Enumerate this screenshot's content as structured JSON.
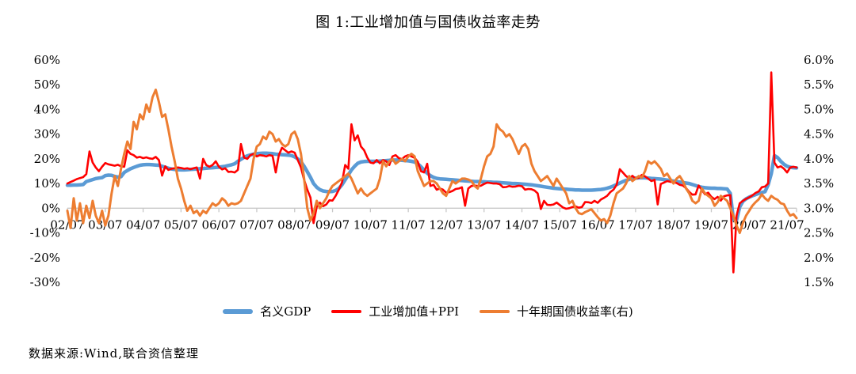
{
  "title": "图 1:工业增加值与国债收益率走势",
  "source_note": "数据来源:Wind,联合资信整理",
  "colors": {
    "gdp_blue": "#5B9BD5",
    "iva_ppi_red": "#FF0000",
    "yield_orange": "#ED7D31",
    "axis_gray": "#C8C8C8",
    "text": "#000000"
  },
  "chart_data": {
    "type": "line",
    "x_start": "2002-07",
    "x_step": "1 month",
    "x_tick_labels": [
      "02/07",
      "03/07",
      "04/07",
      "05/07",
      "06/07",
      "07/07",
      "08/07",
      "09/07",
      "10/07",
      "11/07",
      "12/07",
      "13/07",
      "14/07",
      "15/07",
      "16/07",
      "17/07",
      "18/07",
      "19/07",
      "20/07",
      "21/07"
    ],
    "left_axis": {
      "unit": "%",
      "max": 60,
      "min": -30,
      "tick_labels": [
        "60%",
        "50%",
        "40%",
        "30%",
        "20%",
        "10%",
        "0%",
        "-10%",
        "-20%",
        "-30%"
      ]
    },
    "right_axis": {
      "unit": "%",
      "max": 6.0,
      "min": 1.5,
      "tick_labels": [
        "6.0%",
        "5.5%",
        "5.0%",
        "4.5%",
        "4.0%",
        "3.5%",
        "3.0%",
        "2.5%",
        "2.0%",
        "1.5%"
      ]
    },
    "legend_position": "bottom",
    "grid": "zero-axis-only",
    "series": [
      {
        "name": "名义GDP",
        "axis": "left",
        "color": "#5B9BD5",
        "width": 4.5,
        "values": [
          9.3,
          9.3,
          9.4,
          9.4,
          9.5,
          9.6,
          10.8,
          11.2,
          11.6,
          12.0,
          12.2,
          12.4,
          13.2,
          13.4,
          13.3,
          12.9,
          12.6,
          12.8,
          14.5,
          15.3,
          16.0,
          16.5,
          17.0,
          17.4,
          17.6,
          17.7,
          17.7,
          17.6,
          17.5,
          17.4,
          17.0,
          16.6,
          16.2,
          15.9,
          15.7,
          15.6,
          15.5,
          15.5,
          15.6,
          15.7,
          15.8,
          15.9,
          16.0,
          16.1,
          16.2,
          16.3,
          16.4,
          16.5,
          16.6,
          16.8,
          17.0,
          17.3,
          17.6,
          18.0,
          19.0,
          19.8,
          20.6,
          21.2,
          21.6,
          21.9,
          22.1,
          22.2,
          22.3,
          22.3,
          22.2,
          22.1,
          21.9,
          21.8,
          21.7,
          21.6,
          21.5,
          21.3,
          20.8,
          20.0,
          18.8,
          17.0,
          14.8,
          12.5,
          10.0,
          8.5,
          7.5,
          7.0,
          6.8,
          6.7,
          6.8,
          7.2,
          8.0,
          9.5,
          11.5,
          13.5,
          15.5,
          17.0,
          18.2,
          18.7,
          18.9,
          19.0,
          19.0,
          19.0,
          19.0,
          19.1,
          19.2,
          19.3,
          19.4,
          19.5,
          19.5,
          19.5,
          19.4,
          19.3,
          19.2,
          19.0,
          18.7,
          18.0,
          16.8,
          15.5,
          14.2,
          13.2,
          12.5,
          12.1,
          11.9,
          11.8,
          11.7,
          11.6,
          11.5,
          11.4,
          11.3,
          11.2,
          11.1,
          11.0,
          10.9,
          10.8,
          10.8,
          10.7,
          10.7,
          10.6,
          10.6,
          10.5,
          10.5,
          10.4,
          10.3,
          10.2,
          10.1,
          10.0,
          10.0,
          9.9,
          9.8,
          9.7,
          9.6,
          9.5,
          9.3,
          9.1,
          8.9,
          8.7,
          8.5,
          8.3,
          8.1,
          8.0,
          7.9,
          7.8,
          7.7,
          7.6,
          7.5,
          7.4,
          7.4,
          7.3,
          7.3,
          7.3,
          7.3,
          7.4,
          7.5,
          7.6,
          7.8,
          8.1,
          8.5,
          9.0,
          9.6,
          10.2,
          10.8,
          11.3,
          11.7,
          12.0,
          12.2,
          12.3,
          12.3,
          12.3,
          12.2,
          12.1,
          12.0,
          11.9,
          11.8,
          11.6,
          11.4,
          11.2,
          11.0,
          10.8,
          10.6,
          10.4,
          10.2,
          10.0,
          9.6,
          9.2,
          8.8,
          8.5,
          8.3,
          8.2,
          8.1,
          8.1,
          8.0,
          8.0,
          7.9,
          7.8,
          6.0,
          -4.5,
          -4.8,
          0.5,
          2.8,
          3.8,
          4.5,
          5.0,
          5.5,
          6.0,
          6.4,
          6.7,
          9.5,
          14.0,
          21.3,
          20.5,
          19.0,
          17.8,
          17.0,
          16.6,
          16.4,
          16.3
        ]
      },
      {
        "name": "工业增加值+PPI",
        "axis": "left",
        "color": "#FF0000",
        "width": 2.6,
        "values": [
          10.0,
          10.6,
          11.2,
          11.8,
          12.2,
          12.6,
          13.8,
          23.0,
          18.5,
          16.5,
          15.0,
          16.8,
          18.3,
          17.8,
          17.5,
          17.2,
          17.6,
          17.0,
          16.8,
          23.5,
          22.0,
          21.5,
          20.5,
          20.8,
          20.3,
          20.6,
          20.2,
          20.0,
          20.8,
          19.5,
          13.2,
          17.0,
          15.5,
          16.0,
          16.2,
          16.5,
          16.3,
          16.0,
          16.2,
          15.8,
          16.2,
          16.5,
          12.0,
          20.0,
          17.5,
          16.8,
          17.5,
          19.0,
          16.8,
          15.7,
          16.2,
          14.7,
          14.8,
          14.5,
          15.5,
          26.0,
          20.5,
          20.0,
          21.5,
          22.0,
          21.0,
          21.5,
          21.3,
          21.0,
          21.5,
          21.2,
          14.5,
          21.5,
          24.5,
          23.5,
          22.5,
          23.0,
          22.5,
          19.5,
          16.5,
          11.5,
          7.5,
          4.3,
          -6.0,
          0.5,
          2.3,
          0.8,
          1.5,
          3.2,
          3.1,
          5.0,
          7.5,
          10.5,
          17.5,
          16.0,
          34.0,
          27.5,
          29.5,
          25.0,
          23.5,
          20.5,
          18.5,
          18.2,
          19.5,
          18.2,
          19.5,
          19.0,
          17.5,
          21.0,
          21.5,
          20.3,
          19.9,
          21.0,
          21.5,
          21.0,
          20.4,
          18.8,
          15.0,
          14.5,
          18.0,
          9.0,
          9.5,
          7.5,
          8.0,
          7.5,
          6.3,
          6.5,
          7.0,
          7.8,
          8.0,
          8.5,
          1.0,
          8.0,
          9.0,
          9.2,
          9.0,
          9.1,
          9.8,
          10.4,
          10.2,
          10.0,
          10.0,
          9.7,
          8.5,
          8.6,
          9.0,
          8.7,
          8.8,
          9.1,
          8.9,
          7.5,
          7.8,
          7.7,
          7.2,
          6.0,
          -0.3,
          3.0,
          1.4,
          1.3,
          1.5,
          2.3,
          1.3,
          0.3,
          -0.2,
          0.0,
          0.5,
          0.7,
          0.2,
          0.5,
          2.5,
          2.4,
          2.1,
          3.0,
          2.2,
          3.5,
          4.2,
          5.0,
          6.5,
          7.5,
          9.5,
          15.8,
          14.4,
          13.0,
          12.1,
          13.1,
          12.0,
          12.3,
          13.5,
          12.9,
          12.0,
          11.0,
          11.5,
          1.5,
          9.8,
          10.4,
          11.0,
          10.7,
          10.6,
          10.2,
          9.5,
          9.2,
          8.1,
          6.6,
          5.5,
          5.6,
          9.2,
          7.4,
          5.6,
          6.3,
          4.6,
          3.7,
          4.6,
          3.1,
          4.8,
          5.2,
          5.3,
          -26.0,
          -3.0,
          2.0,
          3.0,
          3.8,
          4.4,
          5.2,
          6.2,
          6.8,
          8.5,
          8.8,
          10.0,
          55.0,
          18.5,
          16.5,
          17.0,
          16.0,
          14.5,
          16.5,
          16.8,
          16.5
        ]
      },
      {
        "name": "十年期国债收益率(右)",
        "axis": "right",
        "color": "#ED7D31",
        "width": 3,
        "values": [
          2.95,
          2.6,
          3.2,
          2.75,
          3.1,
          2.7,
          3.05,
          2.8,
          3.15,
          2.85,
          2.7,
          2.95,
          2.65,
          2.85,
          3.3,
          3.65,
          3.45,
          3.8,
          4.1,
          4.35,
          4.2,
          4.75,
          4.6,
          4.9,
          4.8,
          5.1,
          4.95,
          5.25,
          5.4,
          5.15,
          4.85,
          4.9,
          4.6,
          4.25,
          3.95,
          3.6,
          3.4,
          3.15,
          2.95,
          3.05,
          2.9,
          2.95,
          2.85,
          2.95,
          2.9,
          3.0,
          3.1,
          3.05,
          3.1,
          3.2,
          3.15,
          3.05,
          3.1,
          3.08,
          3.1,
          3.15,
          3.3,
          3.45,
          3.6,
          4.0,
          4.25,
          4.3,
          4.45,
          4.4,
          4.55,
          4.5,
          4.35,
          4.4,
          4.3,
          4.25,
          4.3,
          4.5,
          4.55,
          4.4,
          4.1,
          3.6,
          3.0,
          2.75,
          2.9,
          3.15,
          3.0,
          3.1,
          3.2,
          3.35,
          3.45,
          3.5,
          3.55,
          3.6,
          3.65,
          3.7,
          3.6,
          3.45,
          3.3,
          3.4,
          3.3,
          3.25,
          3.3,
          3.35,
          3.4,
          3.6,
          3.95,
          3.85,
          3.95,
          4.0,
          3.9,
          3.95,
          4.0,
          3.95,
          4.05,
          4.1,
          4.05,
          3.75,
          3.6,
          3.45,
          3.5,
          3.55,
          3.55,
          3.5,
          3.4,
          3.3,
          3.25,
          3.4,
          3.55,
          3.5,
          3.55,
          3.6,
          3.6,
          3.58,
          3.55,
          3.45,
          3.4,
          3.6,
          3.85,
          4.05,
          4.1,
          4.25,
          4.7,
          4.6,
          4.55,
          4.45,
          4.5,
          4.4,
          4.25,
          4.1,
          4.25,
          4.3,
          4.2,
          3.9,
          3.75,
          3.65,
          3.55,
          3.6,
          3.65,
          3.55,
          3.45,
          3.6,
          3.5,
          3.4,
          3.3,
          3.1,
          3.15,
          3.0,
          2.9,
          2.88,
          2.92,
          2.95,
          2.98,
          2.9,
          2.82,
          2.75,
          2.78,
          2.7,
          2.85,
          3.1,
          3.3,
          3.35,
          3.4,
          3.5,
          3.65,
          3.55,
          3.6,
          3.65,
          3.62,
          3.75,
          3.95,
          3.9,
          3.95,
          3.88,
          3.8,
          3.65,
          3.7,
          3.6,
          3.5,
          3.6,
          3.65,
          3.55,
          3.4,
          3.3,
          3.15,
          3.1,
          3.15,
          3.4,
          3.3,
          3.25,
          3.2,
          3.05,
          3.12,
          3.25,
          3.2,
          3.15,
          3.0,
          2.85,
          2.65,
          2.5,
          2.7,
          2.85,
          2.95,
          3.05,
          3.12,
          3.18,
          3.28,
          3.2,
          3.15,
          3.25,
          3.2,
          3.17,
          3.1,
          3.08,
          2.95,
          2.85,
          2.88,
          2.8
        ]
      }
    ]
  }
}
